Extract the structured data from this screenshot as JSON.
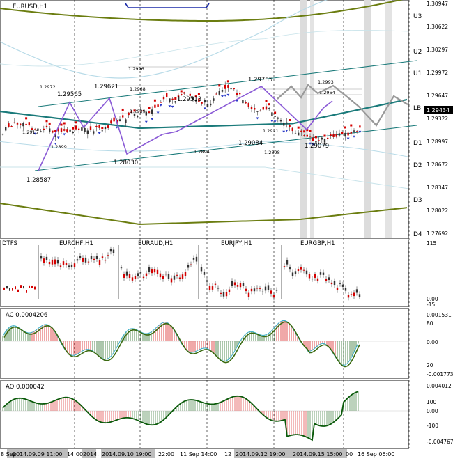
{
  "main_chart": {
    "title": "EURUSD,H1",
    "right_axis_prices": [
      "1.30947",
      "1.30622",
      "1.30297",
      "1.29972",
      "1.29647",
      "1.29322",
      "1.28997",
      "1.28672",
      "1.28347",
      "1.28022",
      "1.27692"
    ],
    "right_labels": [
      "U3",
      "U2",
      "U1",
      "LB",
      "D1",
      "D2",
      "D3",
      "D4"
    ],
    "current_price": "1.29434",
    "price_tags": [
      "1.2996",
      "1.2972",
      "1.29565",
      "1.29621",
      "1.2968",
      "1.2939",
      "1.29513",
      "1.29785",
      "1.2993",
      "1.2964",
      "1.2915",
      "1.2899",
      "1.28587",
      "1.28030",
      "1.2894",
      "1.29084",
      "1.2921",
      "1.2898",
      "1.29079"
    ]
  },
  "multi_pane": {
    "labels": [
      "DTFS",
      "EURCHF,H1",
      "EURAUD,H1",
      "EURJPY,H1",
      "EURGBP,H1"
    ],
    "right_axis": [
      "115",
      "0.00",
      "-15"
    ]
  },
  "ac_pane": {
    "title": "AC 0.0004206",
    "right_axis": [
      "0.001531",
      "80",
      "0.00",
      "20",
      "-0.001773"
    ]
  },
  "ao_pane": {
    "title": "AO 0.000042",
    "right_axis": [
      "0.004012",
      "100",
      "0.00",
      "-100",
      "-0.004767"
    ]
  },
  "time_axis": {
    "labels": [
      "8 Sep",
      "2014.09.09 11:00",
      "14:00",
      "2014.",
      "2014.09.10 19:00",
      "22:00",
      "11 Sep 14:00",
      "12",
      "2014.09.12 19:00",
      "2014.09.15 15:00",
      "00",
      "16 Sep 06:00"
    ]
  },
  "colors": {
    "olive": "#6b7d10",
    "teal": "#1a7a7a",
    "purple": "#8a5ad6",
    "red": "#d40000",
    "green": "#0a5a0a",
    "grey": "#aaaaaa"
  }
}
